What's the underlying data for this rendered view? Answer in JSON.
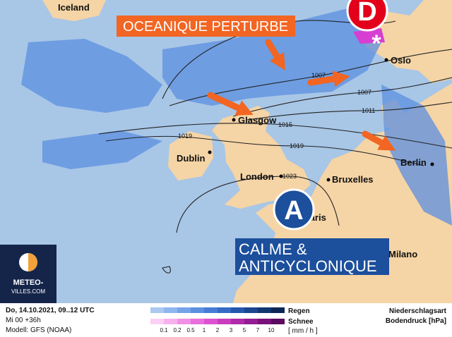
{
  "map": {
    "places": [
      "Iceland",
      "Oslo",
      "Glasgow",
      "Dublin",
      "London",
      "Bruxelles",
      "Berlin",
      "Paris",
      "Milano"
    ],
    "isobars": [
      "1007",
      "1007",
      "1011",
      "1015",
      "1019",
      "1019",
      "1023"
    ],
    "low": "D",
    "high": "A",
    "banner_top": "OCEANIQUE PERTURBE",
    "banner_bottom": [
      "CALME &",
      "ANTICYCLONIQUE"
    ],
    "logo": [
      "METEO-",
      "VILLES.COM"
    ]
  },
  "footer": {
    "date": "Do, 14.10.2021, 09..12 UTC",
    "run": "Mi 00 +36h",
    "model": "Modell: GFS (NOAA)",
    "rain": "Regen",
    "snow": "Schnee",
    "unit": "[ mm / h ]",
    "scale": [
      "0.1",
      "0.2",
      "0.5",
      "1",
      "2",
      "3",
      "5",
      "7",
      "10"
    ],
    "type": "Niederschlagsart",
    "pressure": "Bodendruck [hPa]"
  }
}
